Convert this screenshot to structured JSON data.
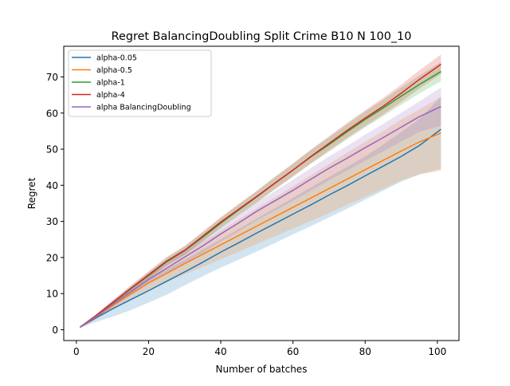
{
  "chart_data": {
    "type": "line",
    "title": "Regret BalancingDoubling Split Crime B10 N 100_10",
    "xlabel": "Number of batches",
    "ylabel": "Regret",
    "xlim": [
      -3.5,
      106
    ],
    "ylim": [
      -3,
      78.5
    ],
    "xticks": [
      0,
      20,
      40,
      60,
      80,
      100
    ],
    "yticks": [
      0,
      10,
      20,
      30,
      40,
      50,
      60,
      70
    ],
    "xtick_labels": [
      "0",
      "20",
      "40",
      "60",
      "80",
      "100"
    ],
    "ytick_labels": [
      "0",
      "10",
      "20",
      "30",
      "40",
      "50",
      "60",
      "70"
    ],
    "grid": false,
    "legend_position": "top-left",
    "x": [
      1,
      5,
      10,
      15,
      20,
      25,
      30,
      35,
      40,
      45,
      50,
      55,
      60,
      65,
      70,
      75,
      80,
      85,
      90,
      95,
      101
    ],
    "series": [
      {
        "name": "alpha-0.05",
        "color": "#1f77b4",
        "values": [
          0.7,
          3.0,
          5.8,
          8.3,
          10.8,
          13.4,
          16.0,
          18.7,
          21.5,
          24.1,
          26.8,
          29.4,
          32.0,
          34.6,
          37.3,
          39.9,
          42.6,
          45.3,
          48.0,
          51.0,
          55.5
        ],
        "lower": [
          0.5,
          2.0,
          3.6,
          5.4,
          7.5,
          9.7,
          12.3,
          14.8,
          17.2,
          19.4,
          21.7,
          24.0,
          26.4,
          28.7,
          31.1,
          33.5,
          36.0,
          38.5,
          41.0,
          43.0,
          44.5
        ],
        "upper": [
          0.9,
          3.8,
          7.6,
          10.9,
          13.9,
          16.7,
          19.4,
          22.2,
          25.0,
          27.9,
          30.8,
          33.6,
          36.5,
          39.4,
          42.3,
          45.1,
          48.0,
          51.3,
          54.7,
          58.4,
          64.5
        ]
      },
      {
        "name": "alpha-0.5",
        "color": "#ff7f0e",
        "values": [
          0.7,
          3.2,
          6.6,
          9.9,
          13.0,
          15.6,
          18.3,
          20.9,
          23.5,
          26.1,
          28.7,
          31.3,
          33.9,
          36.5,
          39.1,
          41.7,
          44.3,
          46.9,
          49.5,
          52.0,
          54.5
        ],
        "lower": [
          0.5,
          2.8,
          5.8,
          8.5,
          11.0,
          13.1,
          15.3,
          17.4,
          19.5,
          21.6,
          23.8,
          25.9,
          28.0,
          30.1,
          32.3,
          34.6,
          36.8,
          39.0,
          41.3,
          43.0,
          44.0
        ],
        "upper": [
          0.9,
          3.6,
          7.3,
          11.2,
          15.0,
          18.0,
          21.2,
          24.3,
          27.4,
          30.5,
          33.6,
          36.6,
          39.7,
          42.8,
          45.9,
          49.0,
          52.0,
          55.0,
          58.2,
          61.0,
          64.5
        ]
      },
      {
        "name": "alpha-1",
        "color": "#2ca02c",
        "values": [
          0.7,
          3.5,
          7.4,
          11.3,
          15.0,
          18.8,
          21.9,
          25.6,
          29.5,
          33.2,
          36.8,
          40.6,
          44.2,
          47.9,
          51.3,
          54.8,
          58.2,
          61.4,
          64.7,
          67.9,
          71.5
        ],
        "lower": [
          0.5,
          3.2,
          6.8,
          10.5,
          14.0,
          17.7,
          20.7,
          24.3,
          28.1,
          31.7,
          35.2,
          38.9,
          42.4,
          46.0,
          49.3,
          52.7,
          56.0,
          59.1,
          62.3,
          65.4,
          68.8
        ],
        "upper": [
          0.9,
          3.8,
          8.0,
          12.1,
          16.0,
          19.9,
          23.1,
          26.9,
          30.9,
          34.7,
          38.4,
          42.3,
          46.0,
          49.8,
          53.3,
          56.9,
          60.4,
          63.7,
          67.1,
          70.4,
          74.2
        ]
      },
      {
        "name": "alpha-4",
        "color": "#d62728",
        "values": [
          0.7,
          3.6,
          7.5,
          11.4,
          15.2,
          19.0,
          22.0,
          25.9,
          29.8,
          33.4,
          36.9,
          40.6,
          44.2,
          48.0,
          51.6,
          55.2,
          58.6,
          61.9,
          65.5,
          69.3,
          73.5
        ],
        "lower": [
          0.5,
          3.3,
          6.9,
          10.6,
          14.2,
          17.9,
          20.8,
          24.6,
          28.4,
          31.9,
          35.3,
          38.9,
          42.4,
          46.1,
          49.6,
          53.1,
          56.4,
          59.6,
          63.1,
          66.8,
          70.8
        ],
        "upper": [
          0.9,
          3.9,
          8.1,
          12.2,
          16.2,
          20.1,
          23.2,
          27.2,
          31.2,
          34.9,
          38.5,
          42.3,
          46.0,
          49.9,
          53.6,
          57.3,
          60.8,
          64.2,
          67.9,
          71.8,
          76.2
        ]
      },
      {
        "name": "alpha BalancingDoubling",
        "color": "#9467bd",
        "values": [
          0.7,
          3.3,
          7.0,
          10.4,
          13.9,
          17.0,
          20.1,
          23.2,
          26.5,
          29.6,
          32.8,
          35.7,
          38.6,
          41.7,
          44.7,
          47.5,
          50.4,
          53.2,
          56.1,
          59.0,
          61.8
        ],
        "lower": [
          0.5,
          3.0,
          6.3,
          9.4,
          12.6,
          15.5,
          18.4,
          21.3,
          24.4,
          27.3,
          30.3,
          33.0,
          35.7,
          38.6,
          41.4,
          44.1,
          46.8,
          49.4,
          52.1,
          54.8,
          56.5
        ],
        "upper": [
          0.9,
          3.6,
          7.7,
          11.4,
          15.2,
          18.5,
          21.8,
          25.1,
          28.6,
          31.9,
          35.3,
          38.4,
          41.5,
          44.8,
          48.0,
          50.9,
          54.0,
          57.0,
          60.1,
          63.2,
          67.1
        ]
      }
    ]
  }
}
